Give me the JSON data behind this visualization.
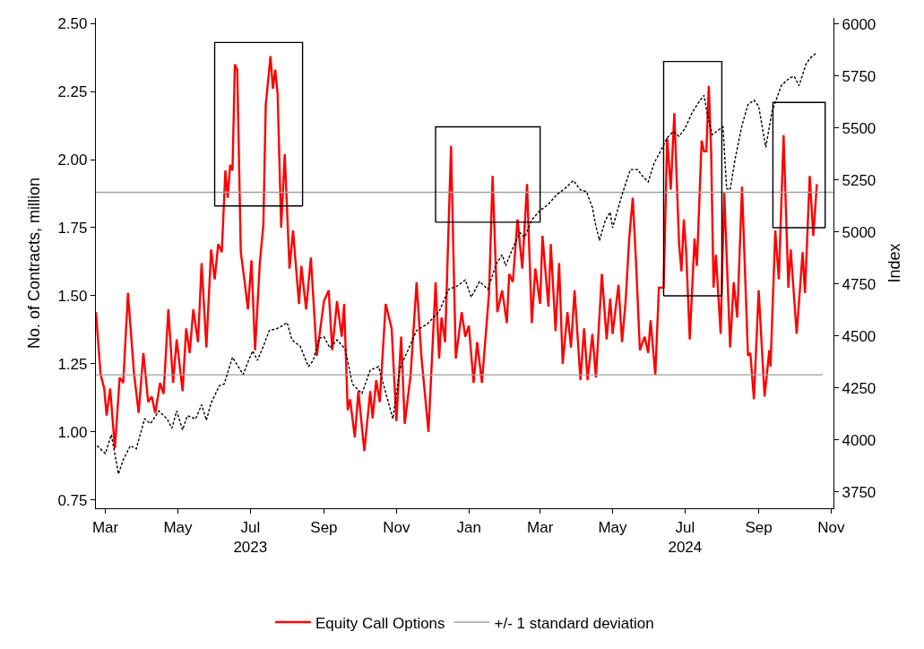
{
  "chart_data": {
    "type": "line",
    "ylabel": "No. of Contracts, million",
    "y2label": "Index",
    "legend": "bottom",
    "xlim": [
      "2023-02-21",
      "2024-11-03"
    ],
    "xticks": [
      {
        "value": "2023-03-01",
        "label": "Mar"
      },
      {
        "value": "2023-05-01",
        "label": "May"
      },
      {
        "value": "2023-07-01",
        "label": "Jul\n2023"
      },
      {
        "value": "2023-09-01",
        "label": "Sep"
      },
      {
        "value": "2023-11-01",
        "label": "Nov"
      },
      {
        "value": "2024-01-01",
        "label": "Jan"
      },
      {
        "value": "2024-03-01",
        "label": "Mar"
      },
      {
        "value": "2024-05-01",
        "label": "May"
      },
      {
        "value": "2024-07-01",
        "label": "Jul\n2024"
      },
      {
        "value": "2024-09-01",
        "label": "Sep"
      },
      {
        "value": "2024-11-01",
        "label": "Nov"
      }
    ],
    "ylim": [
      0.72,
      2.52
    ],
    "yticks": [
      {
        "value": 0.75,
        "label": "0.75"
      },
      {
        "value": 1.0,
        "label": "1.00"
      },
      {
        "value": 1.25,
        "label": "1.25"
      },
      {
        "value": 1.5,
        "label": "1.50"
      },
      {
        "value": 1.75,
        "label": "1.75"
      },
      {
        "value": 2.0,
        "label": "2.00"
      },
      {
        "value": 2.25,
        "label": "2.25"
      },
      {
        "value": 2.5,
        "label": "2.50"
      }
    ],
    "y2lim": [
      3672,
      6030
    ],
    "y2ticks": [
      3750,
      4000,
      4250,
      4500,
      4750,
      5000,
      5250,
      5500,
      5750,
      6000
    ],
    "series": [
      {
        "color": "#000000",
        "axis": "y2",
        "line_style": "dashed",
        "x": [
          "2023-02-22",
          "2023-03-01",
          "2023-03-06",
          "2023-03-12",
          "2023-03-16",
          "2023-03-22",
          "2023-03-27",
          "2023-04-03",
          "2023-04-08",
          "2023-04-15",
          "2023-04-22",
          "2023-04-26",
          "2023-04-30",
          "2023-05-05",
          "2023-05-09",
          "2023-05-16",
          "2023-05-21",
          "2023-05-25",
          "2023-05-29",
          "2023-06-05",
          "2023-06-09",
          "2023-06-16",
          "2023-06-20",
          "2023-06-25",
          "2023-06-29",
          "2023-07-03",
          "2023-07-07",
          "2023-07-12",
          "2023-07-17",
          "2023-07-23",
          "2023-07-28",
          "2023-08-01",
          "2023-08-05",
          "2023-08-12",
          "2023-08-19",
          "2023-08-23",
          "2023-08-28",
          "2023-09-01",
          "2023-09-06",
          "2023-09-12",
          "2023-09-19",
          "2023-09-25",
          "2023-10-03",
          "2023-10-10",
          "2023-10-17",
          "2023-10-24",
          "2023-10-29",
          "2023-11-04",
          "2023-11-11",
          "2023-11-18",
          "2023-11-27",
          "2023-12-07",
          "2023-12-15",
          "2023-12-22",
          "2023-12-29",
          "2024-01-03",
          "2024-01-10",
          "2024-01-17",
          "2024-01-24",
          "2024-01-29",
          "2024-02-01",
          "2024-02-07",
          "2024-02-13",
          "2024-02-17",
          "2024-02-23",
          "2024-03-01",
          "2024-03-08",
          "2024-03-15",
          "2024-03-22",
          "2024-03-29",
          "2024-04-04",
          "2024-04-09",
          "2024-04-14",
          "2024-04-17",
          "2024-04-20",
          "2024-04-25",
          "2024-04-29",
          "2024-05-01",
          "2024-05-09",
          "2024-05-16",
          "2024-05-22",
          "2024-05-26",
          "2024-05-31",
          "2024-06-05",
          "2024-06-10",
          "2024-06-16",
          "2024-06-21",
          "2024-06-26",
          "2024-07-01",
          "2024-07-07",
          "2024-07-13",
          "2024-07-17",
          "2024-07-20",
          "2024-07-24",
          "2024-07-29",
          "2024-08-02",
          "2024-08-05",
          "2024-08-08",
          "2024-08-12",
          "2024-08-18",
          "2024-08-23",
          "2024-08-28",
          "2024-09-01",
          "2024-09-07",
          "2024-09-12",
          "2024-09-20",
          "2024-09-27",
          "2024-10-01",
          "2024-10-05",
          "2024-10-11",
          "2024-10-15",
          "2024-10-20"
        ],
        "values": [
          3973,
          3935,
          4026,
          3837,
          3905,
          3973,
          3958,
          4102,
          4079,
          4140,
          4102,
          4057,
          4140,
          4049,
          4117,
          4102,
          4170,
          4095,
          4178,
          4262,
          4269,
          4398,
          4360,
          4315,
          4375,
          4429,
          4383,
          4451,
          4527,
          4535,
          4550,
          4565,
          4482,
          4451,
          4353,
          4383,
          4489,
          4497,
          4443,
          4482,
          4436,
          4269,
          4224,
          4337,
          4353,
          4208,
          4102,
          4345,
          4436,
          4527,
          4558,
          4618,
          4725,
          4740,
          4770,
          4687,
          4762,
          4725,
          4846,
          4891,
          4838,
          4922,
          4998,
          4975,
          5059,
          5104,
          5134,
          5180,
          5210,
          5248,
          5203,
          5195,
          5119,
          5028,
          4960,
          5059,
          5096,
          5021,
          5180,
          5301,
          5301,
          5271,
          5241,
          5332,
          5385,
          5453,
          5484,
          5461,
          5499,
          5575,
          5628,
          5658,
          5559,
          5468,
          5491,
          5506,
          5210,
          5203,
          5347,
          5514,
          5613,
          5635,
          5605,
          5408,
          5575,
          5704,
          5742,
          5749,
          5704,
          5810,
          5840,
          5863
        ]
      },
      {
        "name": "Equity Call Options",
        "color": "#ff0000",
        "line_style": "solid",
        "x": [
          "2023-02-21",
          "2023-02-25",
          "2023-02-28",
          "2023-03-02",
          "2023-03-05",
          "2023-03-09",
          "2023-03-13",
          "2023-03-16",
          "2023-03-20",
          "2023-03-25",
          "2023-03-29",
          "2023-04-02",
          "2023-04-06",
          "2023-04-09",
          "2023-04-12",
          "2023-04-16",
          "2023-04-19",
          "2023-04-23",
          "2023-04-27",
          "2023-04-30",
          "2023-05-05",
          "2023-05-08",
          "2023-05-11",
          "2023-05-14",
          "2023-05-18",
          "2023-05-21",
          "2023-05-25",
          "2023-05-29",
          "2023-06-01",
          "2023-06-04",
          "2023-06-07",
          "2023-06-10",
          "2023-06-12",
          "2023-06-14",
          "2023-06-16",
          "2023-06-18",
          "2023-06-20",
          "2023-06-23",
          "2023-06-26",
          "2023-06-29",
          "2023-07-02",
          "2023-07-05",
          "2023-07-09",
          "2023-07-12",
          "2023-07-14",
          "2023-07-18",
          "2023-07-20",
          "2023-07-22",
          "2023-07-24",
          "2023-07-27",
          "2023-07-30",
          "2023-08-03",
          "2023-08-06",
          "2023-08-11",
          "2023-08-13",
          "2023-08-17",
          "2023-08-21",
          "2023-08-26",
          "2023-08-29",
          "2023-09-01",
          "2023-09-05",
          "2023-09-08",
          "2023-09-12",
          "2023-09-16",
          "2023-09-18",
          "2023-09-21",
          "2023-09-23",
          "2023-09-27",
          "2023-09-30",
          "2023-10-05",
          "2023-10-10",
          "2023-10-12",
          "2023-10-15",
          "2023-10-18",
          "2023-10-23",
          "2023-10-28",
          "2023-11-01",
          "2023-11-05",
          "2023-11-08",
          "2023-11-13",
          "2023-11-18",
          "2023-11-22",
          "2023-11-28",
          "2023-12-04",
          "2023-12-07",
          "2023-12-09",
          "2023-12-12",
          "2023-12-17",
          "2023-12-21",
          "2023-12-26",
          "2023-12-29",
          "2024-01-01",
          "2024-01-05",
          "2024-01-08",
          "2024-01-12",
          "2024-01-18",
          "2024-01-21",
          "2024-01-25",
          "2024-01-29",
          "2024-02-02",
          "2024-02-04",
          "2024-02-07",
          "2024-02-11",
          "2024-02-15",
          "2024-02-19",
          "2024-02-23",
          "2024-02-26",
          "2024-03-01",
          "2024-03-03",
          "2024-03-08",
          "2024-03-10",
          "2024-03-14",
          "2024-03-17",
          "2024-03-20",
          "2024-03-24",
          "2024-03-27",
          "2024-03-30",
          "2024-04-04",
          "2024-04-07",
          "2024-04-10",
          "2024-04-14",
          "2024-04-17",
          "2024-04-22",
          "2024-04-26",
          "2024-04-29",
          "2024-05-01",
          "2024-05-06",
          "2024-05-09",
          "2024-05-12",
          "2024-05-15",
          "2024-05-18",
          "2024-05-21",
          "2024-05-24",
          "2024-05-28",
          "2024-05-31",
          "2024-06-02",
          "2024-06-06",
          "2024-06-09",
          "2024-06-13",
          "2024-06-16",
          "2024-06-19",
          "2024-06-22",
          "2024-06-26",
          "2024-06-28",
          "2024-06-30",
          "2024-07-02",
          "2024-07-05",
          "2024-07-09",
          "2024-07-11",
          "2024-07-15",
          "2024-07-17",
          "2024-07-19",
          "2024-07-21",
          "2024-07-23",
          "2024-07-25",
          "2024-07-27",
          "2024-07-31",
          "2024-08-03",
          "2024-08-08",
          "2024-08-11",
          "2024-08-14",
          "2024-08-18",
          "2024-08-23",
          "2024-08-25",
          "2024-08-28",
          "2024-09-01",
          "2024-09-06",
          "2024-09-10",
          "2024-09-11",
          "2024-09-15",
          "2024-09-18",
          "2024-09-22",
          "2024-09-26",
          "2024-09-28",
          "2024-10-03",
          "2024-10-08",
          "2024-10-10",
          "2024-10-14",
          "2024-10-17",
          "2024-10-20"
        ],
        "values": [
          1.44,
          1.21,
          1.16,
          1.06,
          1.16,
          0.94,
          1.2,
          1.18,
          1.51,
          1.22,
          1.07,
          1.29,
          1.11,
          1.13,
          1.07,
          1.18,
          1.14,
          1.45,
          1.18,
          1.34,
          1.15,
          1.38,
          1.29,
          1.45,
          1.33,
          1.62,
          1.31,
          1.67,
          1.56,
          1.69,
          1.66,
          1.96,
          1.86,
          1.98,
          1.96,
          2.35,
          2.33,
          1.66,
          1.56,
          1.45,
          1.63,
          1.3,
          1.62,
          1.76,
          2.2,
          2.38,
          2.26,
          2.33,
          2.24,
          1.75,
          2.02,
          1.6,
          1.74,
          1.47,
          1.61,
          1.45,
          1.64,
          1.28,
          1.38,
          1.48,
          1.52,
          1.3,
          1.48,
          1.35,
          1.47,
          1.08,
          1.12,
          0.98,
          1.15,
          0.93,
          1.15,
          1.05,
          1.19,
          1.11,
          1.47,
          1.38,
          1.04,
          1.35,
          1.03,
          1.21,
          1.55,
          1.28,
          1.0,
          1.55,
          1.27,
          1.42,
          1.33,
          2.05,
          1.27,
          1.44,
          1.35,
          1.39,
          1.18,
          1.33,
          1.18,
          1.51,
          1.94,
          1.44,
          1.52,
          1.4,
          1.58,
          1.55,
          1.78,
          1.6,
          1.91,
          1.4,
          1.6,
          1.47,
          1.72,
          1.46,
          1.69,
          1.37,
          1.62,
          1.25,
          1.44,
          1.31,
          1.52,
          1.19,
          1.38,
          1.19,
          1.36,
          1.2,
          1.58,
          1.34,
          1.49,
          1.36,
          1.54,
          1.33,
          1.48,
          1.71,
          1.86,
          1.6,
          1.3,
          1.35,
          1.29,
          1.41,
          1.21,
          1.53,
          1.53,
          2.08,
          1.89,
          2.17,
          1.69,
          1.59,
          1.78,
          1.66,
          1.34,
          1.71,
          1.61,
          2.07,
          2.03,
          2.03,
          2.27,
          2.03,
          1.53,
          1.65,
          1.36,
          1.88,
          1.31,
          1.55,
          1.42,
          1.9,
          1.28,
          1.29,
          1.12,
          1.52,
          1.13,
          1.3,
          1.24,
          1.74,
          1.56,
          2.09,
          1.53,
          1.67,
          1.36,
          1.66,
          1.51,
          1.94,
          1.72,
          1.91
        ]
      },
      {
        "name": "+/- 1 standard deviation",
        "color": "#a0a0a0",
        "line_style": "solid",
        "x": [
          "2023-02-21",
          "2024-11-03"
        ],
        "values": [
          1.88,
          1.88
        ]
      },
      {
        "color": "#a0a0a0",
        "line_style": "solid",
        "x": [
          "2023-02-21",
          "2024-10-25"
        ],
        "values": [
          1.21,
          1.21
        ]
      },
      {
        "color": "#000000",
        "line_style": "solid",
        "x": [
          "2023-06-01",
          "2023-06-01",
          "2023-08-14",
          "2023-08-14"
        ],
        "values": [
          1.83,
          2.43,
          2.43,
          1.83
        ]
      },
      {
        "color": "#000000",
        "line_style": "solid",
        "x": [
          "2023-06-01",
          "2023-08-14"
        ],
        "values": [
          1.83,
          1.83
        ]
      },
      {
        "color": "#000000",
        "line_style": "solid",
        "x": [
          "2023-12-04",
          "2023-12-04",
          "2024-03-01",
          "2024-03-01"
        ],
        "values": [
          1.77,
          2.12,
          2.12,
          1.77
        ]
      },
      {
        "color": "#000000",
        "line_style": "solid",
        "x": [
          "2023-12-04",
          "2024-03-01"
        ],
        "values": [
          1.77,
          1.77
        ]
      },
      {
        "color": "#000000",
        "line_style": "solid",
        "x": [
          "2024-06-13",
          "2024-06-13",
          "2024-08-01",
          "2024-08-01"
        ],
        "values": [
          1.5,
          2.36,
          2.36,
          1.5
        ]
      },
      {
        "color": "#000000",
        "line_style": "solid",
        "x": [
          "2024-06-13",
          "2024-08-01"
        ],
        "values": [
          1.5,
          1.5
        ]
      },
      {
        "color": "#000000",
        "line_style": "solid",
        "x": [
          "2024-09-13",
          "2024-09-13",
          "2024-10-27",
          "2024-10-27"
        ],
        "values": [
          1.75,
          2.21,
          2.21,
          1.75
        ]
      },
      {
        "color": "#000000",
        "line_style": "solid",
        "x": [
          "2024-09-13",
          "2024-10-27"
        ],
        "values": [
          1.75,
          1.75
        ]
      }
    ]
  }
}
